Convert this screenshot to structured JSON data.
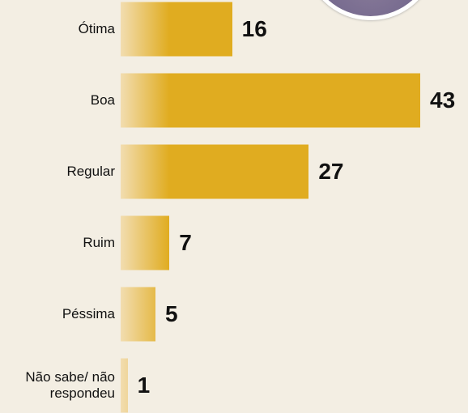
{
  "chart_data": {
    "type": "bar",
    "orientation": "horizontal",
    "categories": [
      "Ótima",
      "Boa",
      "Regular",
      "Ruim",
      "Péssima",
      "Não sabe/ não respondeu"
    ],
    "values": [
      16,
      43,
      27,
      7,
      5,
      1
    ],
    "color": "#e0ac20"
  }
}
